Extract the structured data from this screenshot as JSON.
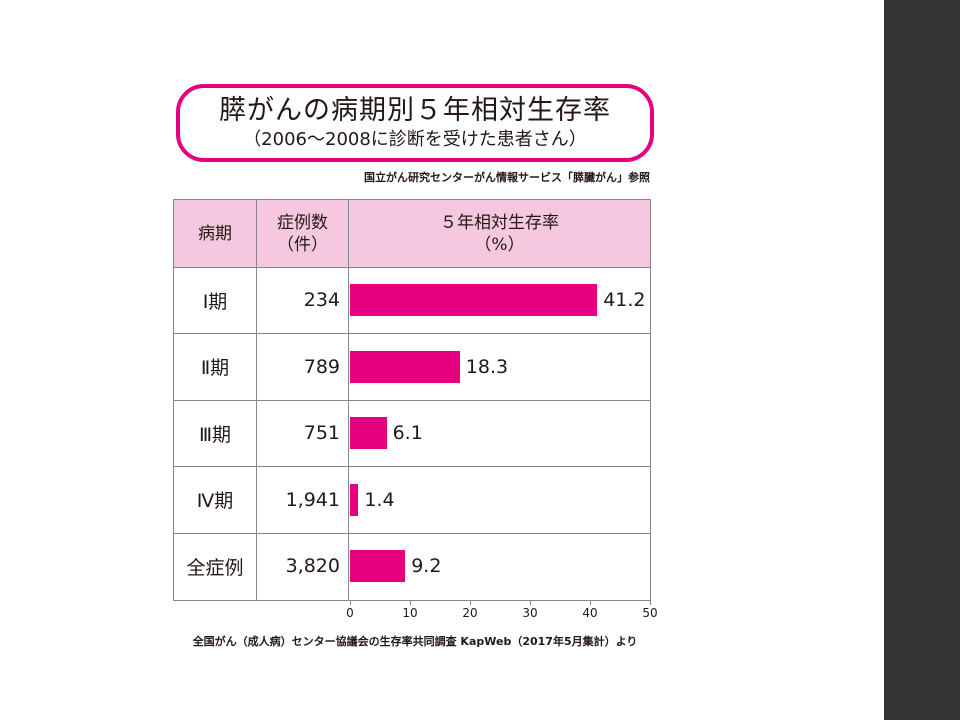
{
  "title": "膵がんの病期別５年相対生存率",
  "subtitle": "（2006〜2008に診断を受けた患者さん）",
  "source_top": "国立がん研究センターがん情報サービス「膵臓がん」参照",
  "source_bottom": "全国がん（成人病）センター協議会の生存率共同調査 KapWeb（2017年5月集計）より",
  "table_headers": {
    "stage": "病期",
    "count_line1": "症例数",
    "count_line2": "（件）",
    "rate_line1": "５年相対生存率",
    "rate_line2": "（%）"
  },
  "chart_data": {
    "type": "bar",
    "orientation": "horizontal",
    "categories": [
      "Ⅰ期",
      "Ⅱ期",
      "Ⅲ期",
      "Ⅳ期",
      "全症例"
    ],
    "case_counts": [
      "234",
      "789",
      "751",
      "1,941",
      "3,820"
    ],
    "values": [
      41.2,
      18.3,
      6.1,
      1.4,
      9.2
    ],
    "value_labels": [
      "41.2",
      "18.3",
      "6.1",
      "1.4",
      "9.2"
    ],
    "xlim": [
      0,
      50
    ],
    "xticks": [
      0,
      10,
      20,
      30,
      40,
      50
    ],
    "bar_color": "#e4007f",
    "header_color": "#f6c8df",
    "grid": false
  },
  "colors": {
    "accent": "#e4007f",
    "side_panel": "#333333"
  }
}
